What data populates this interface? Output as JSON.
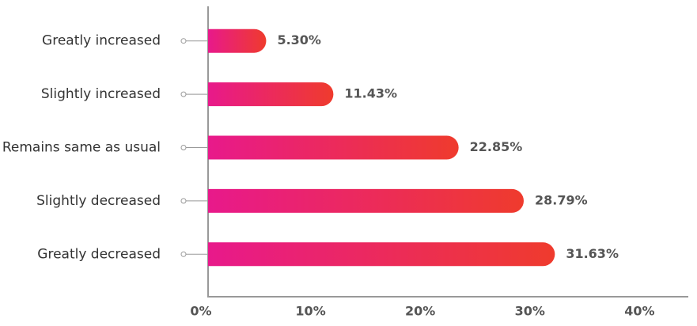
{
  "chart_data": {
    "type": "barh",
    "categories": [
      "Greatly increased",
      "Slightly increased",
      "Remains same as usual",
      "Slightly decreased",
      "Greatly decreased"
    ],
    "values": [
      5.3,
      11.43,
      22.85,
      28.79,
      31.63
    ],
    "value_labels": [
      "5.30%",
      "11.43%",
      "22.85%",
      "28.79%",
      "31.63%"
    ],
    "colors": [
      "#e8198b",
      "#ef3b2d"
    ],
    "xlim": [
      0,
      43.8
    ],
    "xticks": [
      {
        "value": 0,
        "label": "0%"
      },
      {
        "value": 10,
        "label": "10%"
      },
      {
        "value": 20,
        "label": "20%"
      },
      {
        "value": 30,
        "label": "30%"
      },
      {
        "value": 40,
        "label": "40%"
      }
    ]
  }
}
